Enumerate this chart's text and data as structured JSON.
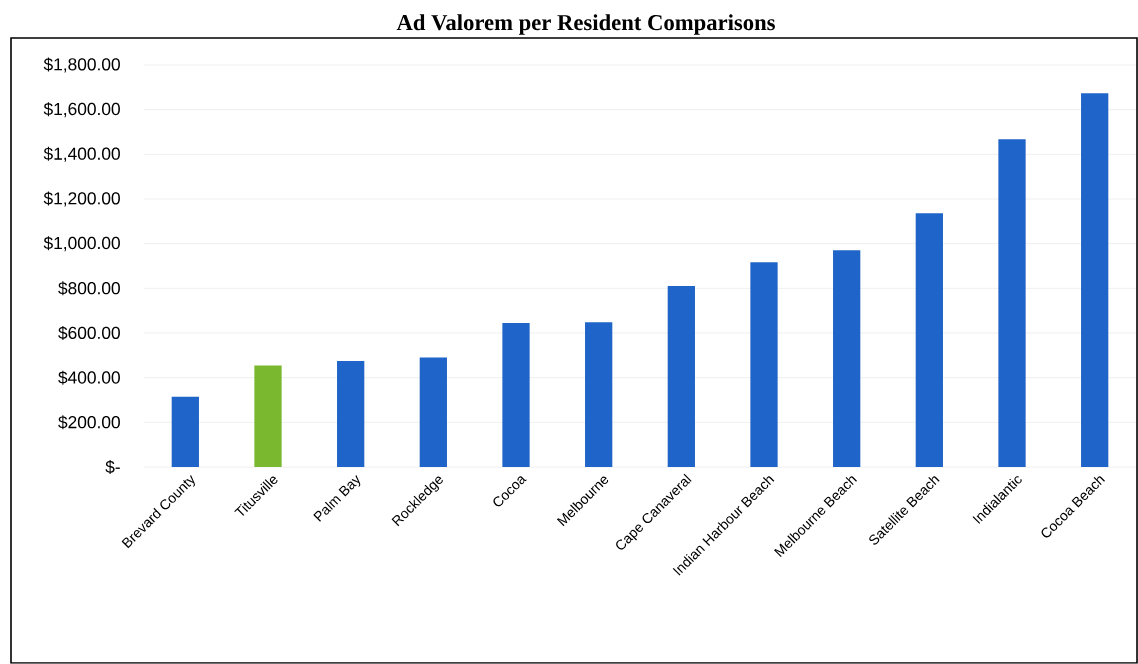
{
  "chart_data": {
    "type": "bar",
    "title": "Ad Valorem per Resident Comparisons",
    "categories": [
      "Brevard County",
      "Titusville",
      "Palm Bay",
      "Rockledge",
      "Cocoa",
      "Melbourne",
      "Cape Canaveral",
      "Indian Harbour Beach",
      "Melbourne Beach",
      "Satellite Beach",
      "Indialantic",
      "Cocoa Beach"
    ],
    "values": [
      315,
      455,
      475,
      490,
      645,
      648,
      810,
      917,
      971,
      1136,
      1467,
      1673
    ],
    "colors": [
      "#1f64c8",
      "#7ab92f",
      "#1f64c8",
      "#1f64c8",
      "#1f64c8",
      "#1f64c8",
      "#1f64c8",
      "#1f64c8",
      "#1f64c8",
      "#1f64c8",
      "#1f64c8",
      "#1f64c8"
    ],
    "ylim": [
      0,
      1800
    ],
    "yticks": [
      {
        "value": 0,
        "label": "$-"
      },
      {
        "value": 200,
        "label": "$200.00"
      },
      {
        "value": 400,
        "label": "$400.00"
      },
      {
        "value": 600,
        "label": "$600.00"
      },
      {
        "value": 800,
        "label": "$800.00"
      },
      {
        "value": 1000,
        "label": "$1,000.00"
      },
      {
        "value": 1200,
        "label": "$1,200.00"
      },
      {
        "value": 1400,
        "label": "$1,400.00"
      },
      {
        "value": 1600,
        "label": "$1,600.00"
      },
      {
        "value": 1800,
        "label": "$1,800.00"
      }
    ],
    "grid": "y"
  }
}
